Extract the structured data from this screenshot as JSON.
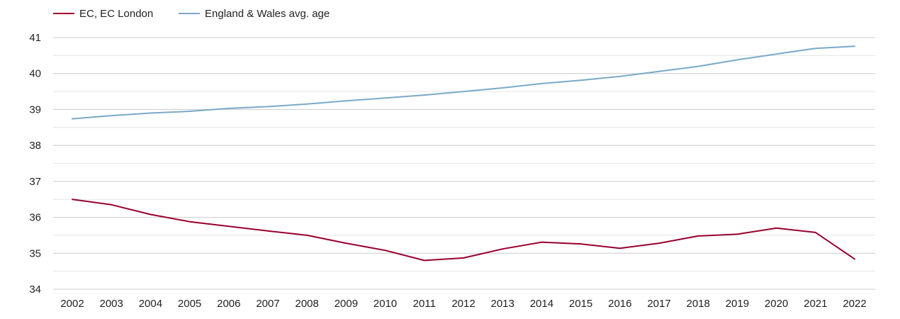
{
  "chart_data": {
    "type": "line",
    "title": "",
    "xlabel": "",
    "ylabel": "",
    "categories": [
      "2002",
      "2003",
      "2004",
      "2005",
      "2006",
      "2007",
      "2008",
      "2009",
      "2010",
      "2011",
      "2012",
      "2013",
      "2014",
      "2015",
      "2016",
      "2017",
      "2018",
      "2019",
      "2020",
      "2021",
      "2022"
    ],
    "series": [
      {
        "name": "EC, EC London",
        "color": "#99002e",
        "values": [
          36.5,
          36.35,
          36.08,
          35.88,
          35.75,
          35.62,
          35.5,
          35.28,
          35.08,
          34.8,
          34.87,
          35.12,
          35.31,
          35.26,
          35.14,
          35.28,
          35.48,
          35.53,
          35.7,
          35.58,
          34.84
        ]
      },
      {
        "name": "England & Wales avg. age",
        "color": "#7aaac8",
        "values": [
          38.74,
          38.83,
          38.9,
          38.95,
          39.03,
          39.08,
          39.15,
          39.24,
          39.32,
          39.4,
          39.5,
          39.6,
          39.72,
          39.81,
          39.92,
          40.06,
          40.2,
          40.38,
          40.54,
          40.7,
          40.76
        ]
      }
    ],
    "ylim": [
      34,
      41
    ],
    "yticks": [
      34,
      35,
      36,
      37,
      38,
      39,
      40,
      41
    ],
    "grid": true,
    "legend": "top-left"
  }
}
